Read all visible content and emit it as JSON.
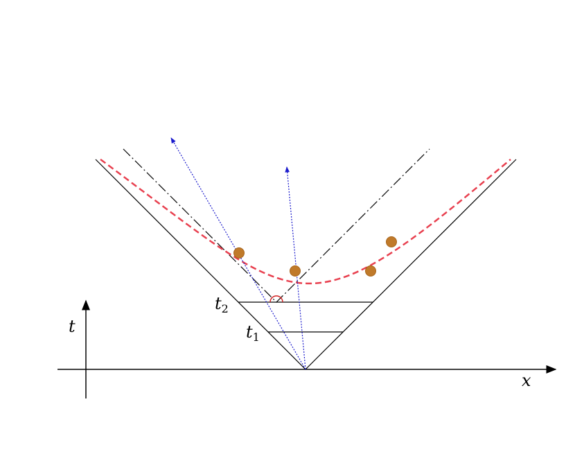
{
  "axes": {
    "t": "t",
    "x": "x"
  },
  "labels": [
    {
      "base": "t",
      "sub": "2"
    },
    {
      "base": "t",
      "sub": "1"
    }
  ]
}
